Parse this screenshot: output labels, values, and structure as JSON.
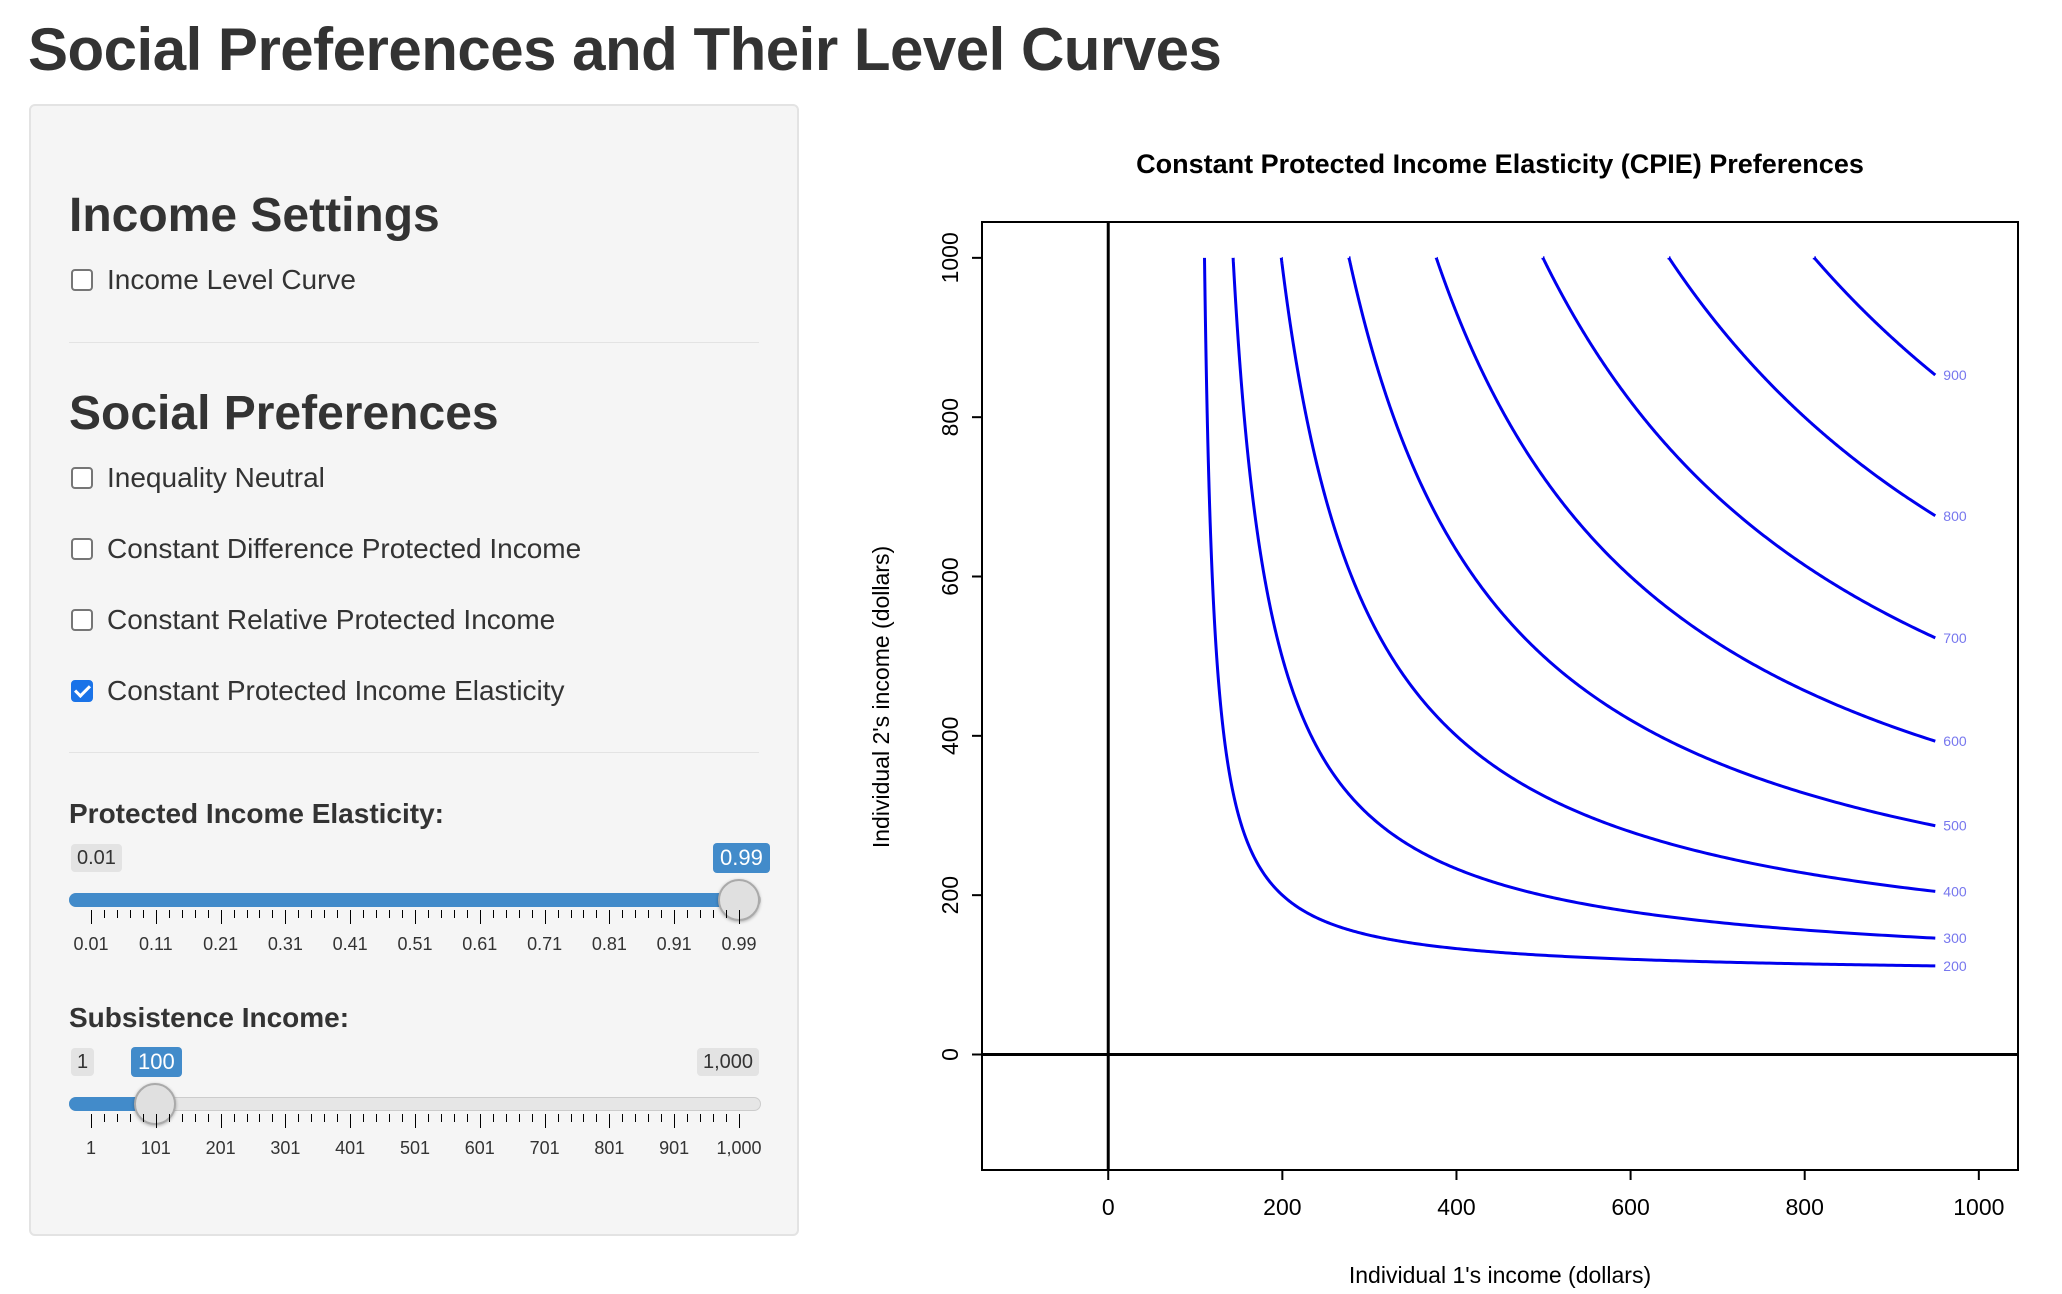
{
  "page": {
    "title": "Social Preferences and Their Level Curves"
  },
  "sidebar": {
    "income_settings": {
      "heading": "Income Settings",
      "checkboxes": [
        {
          "label": "Income Level Curve",
          "checked": false
        }
      ]
    },
    "social_preferences": {
      "heading": "Social Preferences",
      "checkboxes": [
        {
          "label": "Inequality Neutral",
          "checked": false
        },
        {
          "label": "Constant Difference Protected Income",
          "checked": false
        },
        {
          "label": "Constant Relative Protected Income",
          "checked": false
        },
        {
          "label": "Constant Protected Income Elasticity",
          "checked": true
        }
      ]
    },
    "sliders": {
      "elasticity": {
        "label": "Protected Income Elasticity:",
        "min_label": "0.01",
        "value_label": "0.99",
        "value": 0.99,
        "min": 0.01,
        "max": 0.99,
        "ticks": [
          "0.01",
          "0.11",
          "0.21",
          "0.31",
          "0.41",
          "0.51",
          "0.61",
          "0.71",
          "0.81",
          "0.91",
          "0.99"
        ]
      },
      "subsistence": {
        "label": "Subsistence Income:",
        "min_label": "1",
        "value_label": "100",
        "max_label": "1,000",
        "value": 100,
        "min": 1,
        "max": 1000,
        "ticks": [
          "1",
          "101",
          "201",
          "301",
          "401",
          "501",
          "601",
          "701",
          "801",
          "901",
          "1,000"
        ]
      }
    },
    "accent_color": "#428bca",
    "checkbox_color": "#1a73e8"
  },
  "chart_data": {
    "type": "line",
    "title": "Constant Protected Income Elasticity (CPIE) Preferences",
    "xlabel": "Individual 1's income (dollars)",
    "ylabel": "Individual 2's income (dollars)",
    "xlim": [
      -145,
      1045
    ],
    "ylim": [
      -145,
      1045
    ],
    "xticks": [
      0,
      200,
      400,
      600,
      800,
      1000
    ],
    "yticks": [
      0,
      200,
      400,
      600,
      800,
      1000
    ],
    "subsistence_income": 100,
    "elasticity": 0.99,
    "curve_x_max": 950,
    "curve_y_max": 1000,
    "curve_color": "#0000ee",
    "label_color": "#7777ee",
    "levels": [
      200,
      300,
      400,
      500,
      600,
      700,
      800,
      900
    ],
    "level_labels": [
      "200",
      "300",
      "400",
      "500",
      "600",
      "700",
      "800",
      "900"
    ],
    "grid": false
  }
}
